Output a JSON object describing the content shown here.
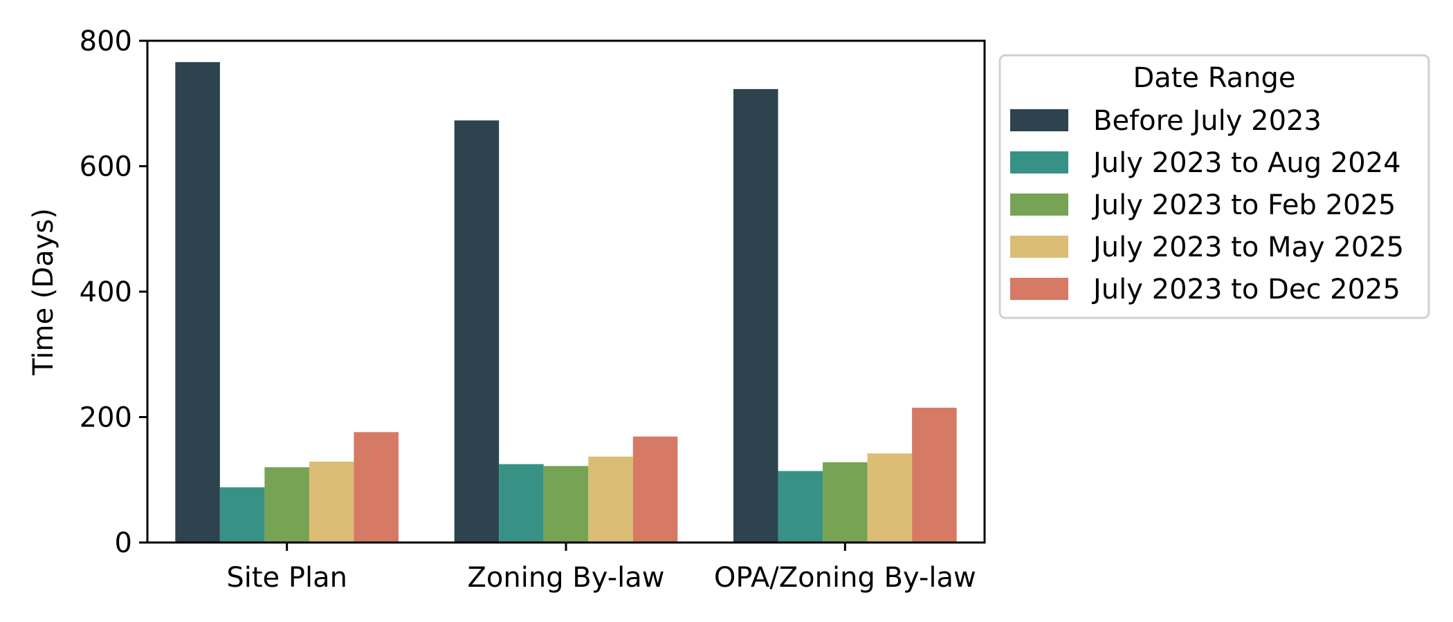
{
  "chart_data": {
    "type": "bar",
    "title": "",
    "xlabel": "",
    "ylabel": "Time (Days)",
    "ylim": [
      0,
      800
    ],
    "yticks": [
      0,
      200,
      400,
      600,
      800
    ],
    "grid": false,
    "categories": [
      "Site Plan",
      "Zoning By-law",
      "OPA/Zoning By-law"
    ],
    "legend_title": "Date Range",
    "legend_position": "outside-right-top",
    "series": [
      {
        "name": "Before July 2023",
        "color": "#2d444e",
        "values": [
          766,
          673,
          723
        ]
      },
      {
        "name": "July 2023 to Aug 2024",
        "color": "#379285",
        "values": [
          88,
          125,
          114
        ]
      },
      {
        "name": "July 2023 to Feb 2025",
        "color": "#76a354",
        "values": [
          120,
          122,
          128
        ]
      },
      {
        "name": "July 2023 to May 2025",
        "color": "#dcbd76",
        "values": [
          129,
          137,
          142
        ]
      },
      {
        "name": "July 2023 to Dec 2025",
        "color": "#d67965",
        "values": [
          176,
          169,
          215
        ]
      }
    ]
  }
}
